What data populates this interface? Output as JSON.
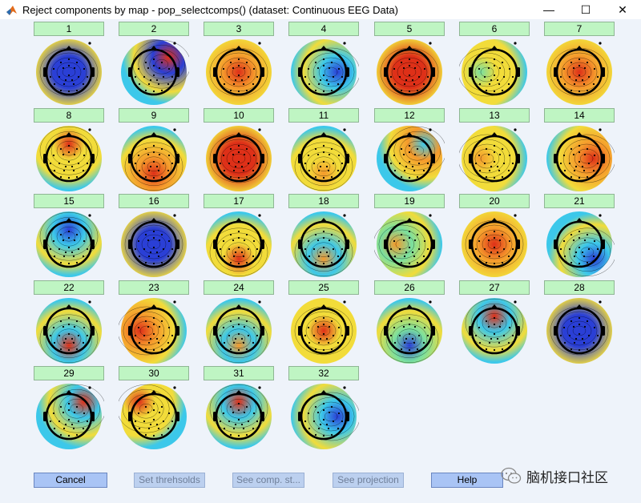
{
  "window": {
    "title": "Reject components by map - pop_selectcomps() (dataset: Continuous EEG Data)",
    "controls": {
      "minimize": "—",
      "maximize": "☐",
      "close": "✕"
    }
  },
  "colors": {
    "background": "#eef3fa",
    "component_button": "#bff5c3",
    "action_button": "#a9c4f5",
    "disabled_text": "#6f7f99"
  },
  "components": [
    {
      "label": "1",
      "center": "blue",
      "blob": "blue",
      "blob_pos": "center"
    },
    {
      "label": "2",
      "center": "blue",
      "blob": "red",
      "blob_pos": "top-right"
    },
    {
      "label": "3",
      "center": "orange",
      "blob": "red",
      "blob_pos": "center"
    },
    {
      "label": "4",
      "center": "cyan",
      "blob": "blue",
      "blob_pos": "right"
    },
    {
      "label": "5",
      "center": "red",
      "blob": "red",
      "blob_pos": "center"
    },
    {
      "label": "6",
      "center": "yellow",
      "blob": "green",
      "blob_pos": "left"
    },
    {
      "label": "7",
      "center": "orange",
      "blob": "red",
      "blob_pos": "center"
    },
    {
      "label": "8",
      "center": "yellow",
      "blob": "red",
      "blob_pos": "top"
    },
    {
      "label": "9",
      "center": "orange",
      "blob": "red",
      "blob_pos": "bottom"
    },
    {
      "label": "10",
      "center": "red",
      "blob": "red",
      "blob_pos": "center"
    },
    {
      "label": "11",
      "center": "yellow",
      "blob": "orange",
      "blob_pos": "bottom"
    },
    {
      "label": "12",
      "center": "orange",
      "blob": "cyan",
      "blob_pos": "top-right"
    },
    {
      "label": "13",
      "center": "yellow",
      "blob": "orange",
      "blob_pos": "left"
    },
    {
      "label": "14",
      "center": "orange",
      "blob": "red",
      "blob_pos": "right"
    },
    {
      "label": "15",
      "center": "cyan",
      "blob": "blue",
      "blob_pos": "top"
    },
    {
      "label": "16",
      "center": "blue",
      "blob": "blue",
      "blob_pos": "center"
    },
    {
      "label": "17",
      "center": "yellow",
      "blob": "red",
      "blob_pos": "bottom"
    },
    {
      "label": "18",
      "center": "cyan",
      "blob": "orange",
      "blob_pos": "bottom"
    },
    {
      "label": "19",
      "center": "green",
      "blob": "orange",
      "blob_pos": "left"
    },
    {
      "label": "20",
      "center": "orange",
      "blob": "red",
      "blob_pos": "center"
    },
    {
      "label": "21",
      "center": "cyan",
      "blob": "blue",
      "blob_pos": "bottom-right"
    },
    {
      "label": "22",
      "center": "cyan",
      "blob": "red",
      "blob_pos": "bottom"
    },
    {
      "label": "23",
      "center": "orange",
      "blob": "red",
      "blob_pos": "left"
    },
    {
      "label": "24",
      "center": "cyan",
      "blob": "orange",
      "blob_pos": "bottom"
    },
    {
      "label": "25",
      "center": "yellow",
      "blob": "red",
      "blob_pos": "center"
    },
    {
      "label": "26",
      "center": "green",
      "blob": "blue",
      "blob_pos": "bottom"
    },
    {
      "label": "27",
      "center": "cyan",
      "blob": "red",
      "blob_pos": "top"
    },
    {
      "label": "28",
      "center": "blue",
      "blob": "blue",
      "blob_pos": "center"
    },
    {
      "label": "29",
      "center": "cyan",
      "blob": "red",
      "blob_pos": "top-right"
    },
    {
      "label": "30",
      "center": "yellow",
      "blob": "red",
      "blob_pos": "top-left"
    },
    {
      "label": "31",
      "center": "cyan",
      "blob": "red",
      "blob_pos": "top"
    },
    {
      "label": "32",
      "center": "cyan",
      "blob": "blue",
      "blob_pos": "right"
    }
  ],
  "buttons": {
    "cancel": "Cancel",
    "set_thresholds": "Set threhsolds",
    "see_comp_stats": "See comp. st...",
    "see_projection": "See projection",
    "help": "Help"
  },
  "watermark": {
    "text": "脑机接口社区"
  }
}
